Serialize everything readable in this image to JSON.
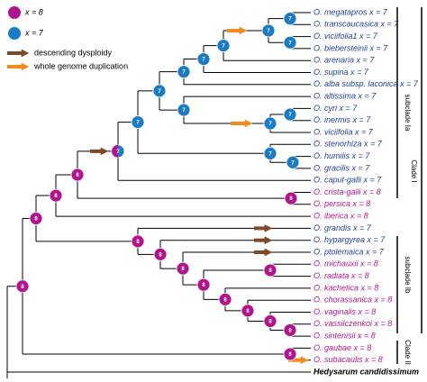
{
  "legend": {
    "x8": "x = 8",
    "x7": "x = 7",
    "dysploidy": "descending dysploidy",
    "wgd": "whole genome duplication"
  },
  "taxa": [
    "O. megatapros x = 7",
    "O. transcaucasica x = 7",
    "O. viciifolia1 x = 7",
    "O. biebersteinii x = 7",
    "O. arenaria x = 7",
    "O. supina x = 7",
    "O. alba subsp. laconica x = 7",
    "O. altissima x = 7",
    "O. cyri x = 7",
    "O. inermis x = 7",
    "O. viciifolia x = 7",
    "O. stenorhiza x = 7",
    "O. humilis x = 7",
    "O. gracilis x = 7",
    "O. caput-galli x = 7",
    "O. crista-galli x = 8",
    "O. persica x = 8",
    "O. iberica x = 8",
    "O. grandis x = 7",
    "O. hypargyrea x = 7",
    "O. ptolemaica x = 7",
    "O. michauxii x = 8",
    "O. radiata x = 8",
    "O. kachetica x = 8",
    "O. chorassanica x = 8",
    "O. vaginalis x = 8",
    "O. vassilczenkoi x = 8",
    "O. sintenisii x = 8",
    "O. gaubae x = 8",
    "O. subacaulis x = 8",
    "Hedysarum candidissimum"
  ],
  "nodes": [
    "7",
    "7",
    "7",
    "7",
    "7",
    "7",
    "7",
    "7",
    "7",
    "7",
    "7",
    "7",
    "7",
    "7",
    "8",
    "8",
    "8",
    "8",
    "8",
    "8",
    "8",
    "8",
    "8",
    "8",
    "8",
    "8",
    "8",
    "8",
    "8"
  ],
  "clades": {
    "subclade_ia": "subclade Ia",
    "clade_i": "Clade I",
    "subclade_ib": "subclade Ib",
    "clade_ii": "Clade II"
  }
}
